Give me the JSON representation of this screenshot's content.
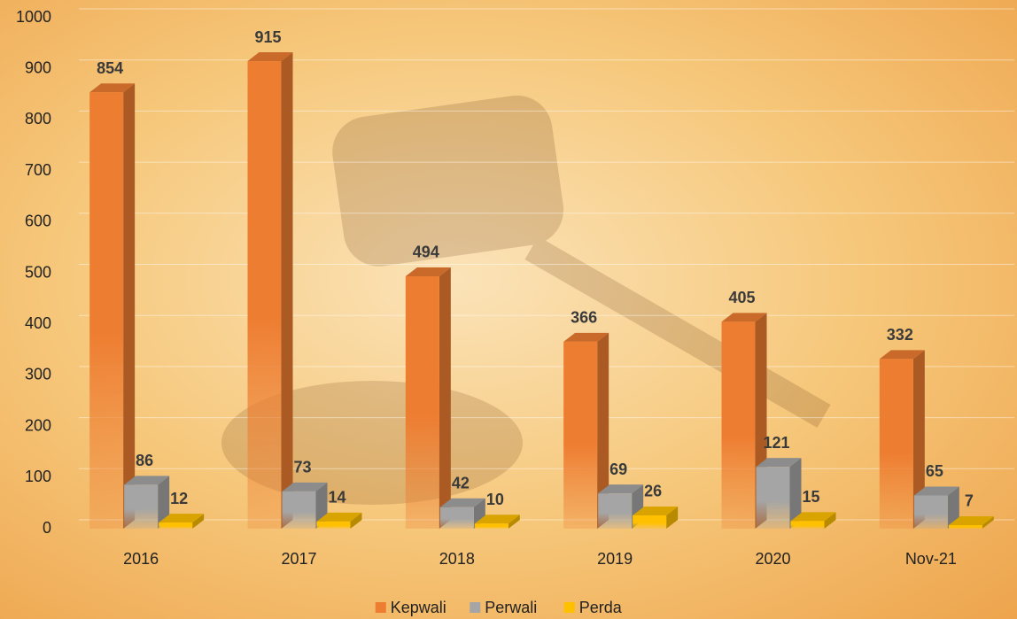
{
  "chart_data": {
    "type": "bar3d",
    "categories": [
      "2016",
      "2017",
      "2018",
      "2019",
      "2020",
      "Nov-21"
    ],
    "series": [
      {
        "name": "Kepwali",
        "color": "#ed7d31",
        "values": [
          854,
          915,
          494,
          366,
          405,
          332
        ]
      },
      {
        "name": "Perwali",
        "color": "#a5a5a5",
        "values": [
          86,
          73,
          42,
          69,
          121,
          65
        ]
      },
      {
        "name": "Perda",
        "color": "#ffc000",
        "values": [
          12,
          14,
          10,
          26,
          15,
          7
        ]
      }
    ],
    "ylim": [
      0,
      1000
    ],
    "yticks": [
      0,
      100,
      200,
      300,
      400,
      500,
      600,
      700,
      800,
      900,
      1000
    ],
    "grid": true,
    "legend": "bottom"
  }
}
